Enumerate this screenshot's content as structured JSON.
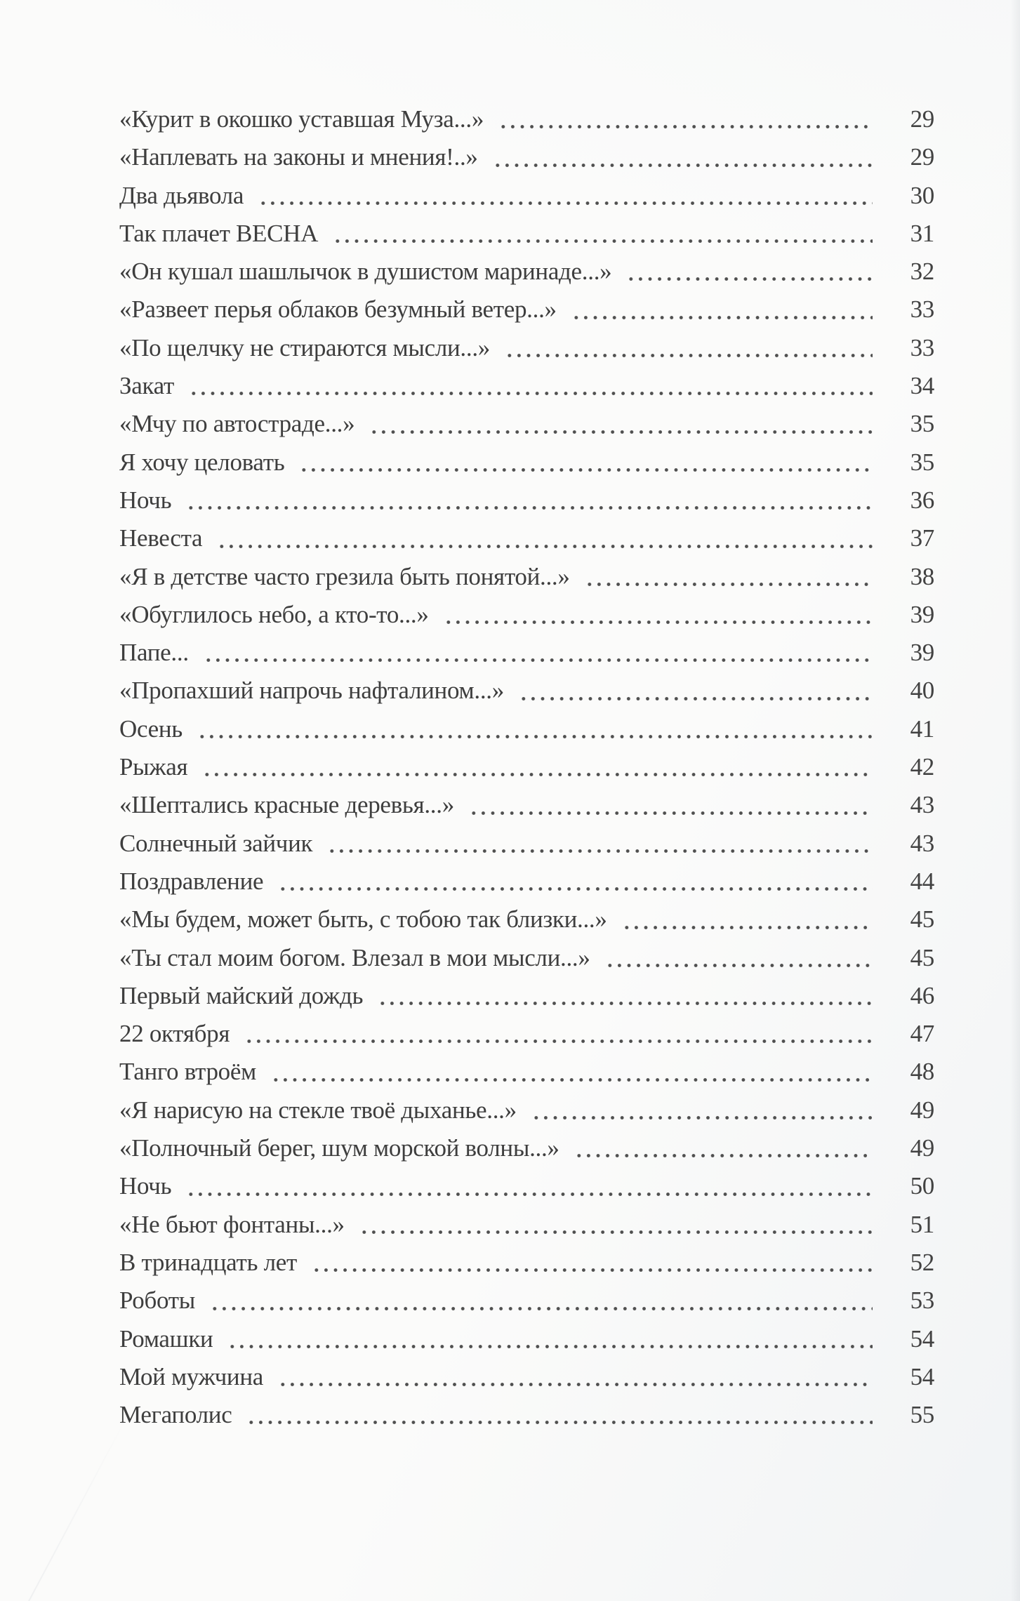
{
  "document": {
    "kind": "book-table-of-contents-page",
    "language": "ru",
    "colors": {
      "text": "#3e3e3e",
      "leader_dots": "#4f4f4f",
      "paper": "#fbfbfa"
    },
    "entries": [
      {
        "title": "«Курит в окошко уставшая Муза...»",
        "page": "29"
      },
      {
        "title": "«Наплевать на законы и мнения!..»",
        "page": "29"
      },
      {
        "title": "Два дьявола",
        "page": "30"
      },
      {
        "title": "Так плачет ВЕСНА",
        "page": "31"
      },
      {
        "title": "«Он кушал шашлычок в душистом маринаде...»",
        "page": "32"
      },
      {
        "title": "«Развеет перья облаков безумный ветер...»",
        "page": "33"
      },
      {
        "title": "«По щелчку не стираются мысли...»",
        "page": "33"
      },
      {
        "title": "Закат",
        "page": "34"
      },
      {
        "title": "«Мчу по автостраде...»",
        "page": "35"
      },
      {
        "title": "Я хочу целовать",
        "page": "35"
      },
      {
        "title": "Ночь",
        "page": "36"
      },
      {
        "title": "Невеста",
        "page": "37"
      },
      {
        "title": "«Я в детстве часто грезила быть понятой...»",
        "page": "38"
      },
      {
        "title": "«Обуглилось небо, а кто-то...»",
        "page": "39"
      },
      {
        "title": "Папе...",
        "page": "39"
      },
      {
        "title": "«Пропахший напрочь нафталином...»",
        "page": "40"
      },
      {
        "title": "Осень",
        "page": "41"
      },
      {
        "title": "Рыжая",
        "page": "42"
      },
      {
        "title": "«Шептались красные деревья...»",
        "page": "43"
      },
      {
        "title": "Солнечный зайчик",
        "page": "43"
      },
      {
        "title": "Поздравление",
        "page": "44"
      },
      {
        "title": "«Мы будем, может быть, с тобою так близки...»",
        "page": "45"
      },
      {
        "title": "«Ты стал моим богом. Влезал в мои мысли...»",
        "page": "45"
      },
      {
        "title": "Первый майский дождь",
        "page": "46"
      },
      {
        "title": "22 октября",
        "page": "47"
      },
      {
        "title": "Танго втроём",
        "page": "48"
      },
      {
        "title": "«Я нарисую на стекле твоё дыханье...»",
        "page": "49"
      },
      {
        "title": "«Полночный берег, шум морской волны...»",
        "page": "49"
      },
      {
        "title": "Ночь",
        "page": "50"
      },
      {
        "title": "«Не бьют фонтаны...»",
        "page": "51"
      },
      {
        "title": "В тринадцать лет",
        "page": "52"
      },
      {
        "title": "Роботы",
        "page": "53"
      },
      {
        "title": "Ромашки",
        "page": "54"
      },
      {
        "title": "Мой мужчина",
        "page": "54"
      },
      {
        "title": "Мегаполис",
        "page": "55"
      }
    ]
  }
}
